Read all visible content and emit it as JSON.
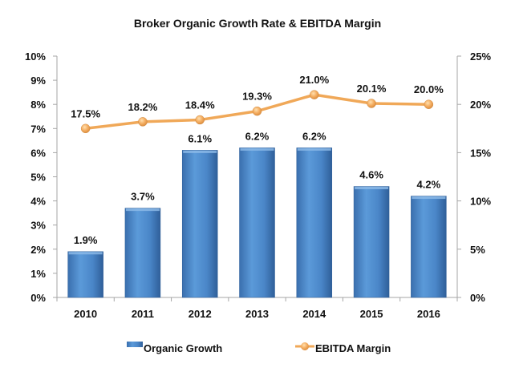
{
  "chart_data": {
    "type": "bar",
    "title": "Broker Organic Growth Rate & EBITDA Margin",
    "categories": [
      "2010",
      "2011",
      "2012",
      "2013",
      "2014",
      "2015",
      "2016"
    ],
    "series": [
      {
        "name": "Organic Growth",
        "type": "bar",
        "axis": "left",
        "values": [
          1.9,
          3.7,
          6.1,
          6.2,
          6.2,
          4.6,
          4.2
        ],
        "labels": [
          "1.9%",
          "3.7%",
          "6.1%",
          "6.2%",
          "6.2%",
          "4.6%",
          "4.2%"
        ],
        "color": "#4a86c8"
      },
      {
        "name": "EBITDA Margin",
        "type": "line",
        "axis": "right",
        "values": [
          17.5,
          18.2,
          18.4,
          19.3,
          21.0,
          20.1,
          20.0
        ],
        "labels": [
          "17.5%",
          "18.2%",
          "18.4%",
          "19.3%",
          "21.0%",
          "20.1%",
          "20.0%"
        ],
        "color": "#f0a858"
      }
    ],
    "y_left": {
      "range": [
        0,
        10
      ],
      "ticks": [
        "0%",
        "1%",
        "2%",
        "3%",
        "4%",
        "5%",
        "6%",
        "7%",
        "8%",
        "9%",
        "10%"
      ],
      "unit": "%"
    },
    "y_right": {
      "range": [
        0,
        25
      ],
      "ticks": [
        "0%",
        "5%",
        "10%",
        "15%",
        "20%",
        "25%"
      ],
      "unit": "%"
    },
    "xlabel": "",
    "ylabel": "",
    "grid": false,
    "legend": {
      "position": "bottom",
      "entries": [
        "Organic Growth",
        "EBITDA Margin"
      ]
    }
  }
}
